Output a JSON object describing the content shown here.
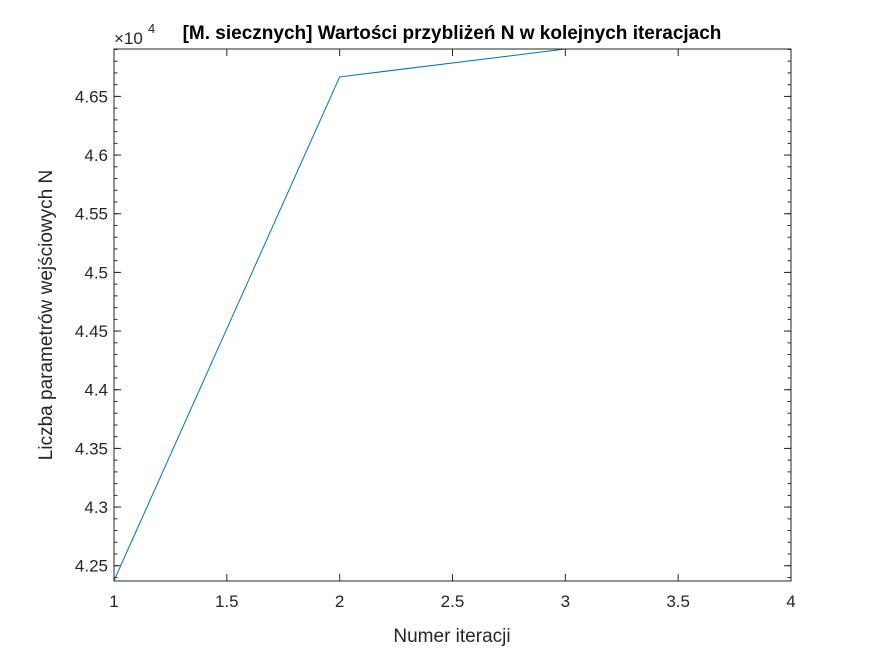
{
  "chart_data": {
    "type": "line",
    "title": "[M. siecznych] Wartości przybliżeń N w kolejnych iteracjach",
    "xlabel": "Numer iteracji",
    "ylabel": "Liczba parametrów wejściowych N",
    "exponent_label": "×10",
    "exponent_power": "4",
    "x": [
      1,
      2,
      3,
      4
    ],
    "series": [
      {
        "values": [
          4.2373,
          4.6666,
          4.6904,
          4.6904
        ]
      }
    ],
    "xlim": [
      1,
      4
    ],
    "ylim": [
      4.237,
      4.6904
    ],
    "x_ticks": [
      "1",
      "1.5",
      "2",
      "2.5",
      "3",
      "3.5",
      "4"
    ],
    "x_tick_values": [
      1,
      1.5,
      2,
      2.5,
      3,
      3.5,
      4
    ],
    "y_ticks": [
      "4.25",
      "4.3",
      "4.35",
      "4.4",
      "4.45",
      "4.5",
      "4.55",
      "4.6",
      "4.65"
    ],
    "y_tick_values": [
      4.25,
      4.3,
      4.35,
      4.4,
      4.45,
      4.5,
      4.55,
      4.6,
      4.65
    ],
    "grid": false,
    "line_color": "#0072BD",
    "axis_color": "#262626"
  }
}
